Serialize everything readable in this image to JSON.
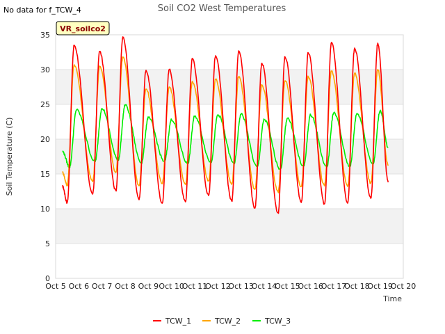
{
  "chart_data": {
    "type": "line",
    "title": "Soil CO2 West Temperatures",
    "note": "No data for f_TCW_4",
    "badge": "VR_soilco2",
    "xlabel": "Time",
    "ylabel": "Soil Temperature (C)",
    "xlim": [
      5,
      20
    ],
    "ylim": [
      0,
      35
    ],
    "x_ticks": [
      {
        "v": 5,
        "label": "Oct 5"
      },
      {
        "v": 6,
        "label": "Oct 6"
      },
      {
        "v": 7,
        "label": "Oct 7"
      },
      {
        "v": 8,
        "label": "Oct 8"
      },
      {
        "v": 9,
        "label": "Oct 9"
      },
      {
        "v": 10,
        "label": "Oct 10"
      },
      {
        "v": 11,
        "label": "Oct 11"
      },
      {
        "v": 12,
        "label": "Oct 12"
      },
      {
        "v": 13,
        "label": "Oct 13"
      },
      {
        "v": 14,
        "label": "Oct 14"
      },
      {
        "v": 15,
        "label": "Oct 15"
      },
      {
        "v": 16,
        "label": "Oct 16"
      },
      {
        "v": 17,
        "label": "Oct 17"
      },
      {
        "v": 18,
        "label": "Oct 18"
      },
      {
        "v": 19,
        "label": "Oct 19"
      },
      {
        "v": 20,
        "label": "Oct 20"
      }
    ],
    "y_ticks": [
      0,
      5,
      10,
      15,
      20,
      25,
      30,
      35
    ],
    "grid": true,
    "legend": "bottom",
    "series": [
      {
        "name": "TCW_1",
        "color": "#ff0000",
        "start_value": 13.2,
        "end_value": 13.8,
        "peaks": [
          [
            5.8,
            33.5
          ],
          [
            6.9,
            32.6
          ],
          [
            7.9,
            34.7
          ],
          [
            8.9,
            29.9
          ],
          [
            9.9,
            30.0
          ],
          [
            10.9,
            31.6
          ],
          [
            11.9,
            32.0
          ],
          [
            12.9,
            32.7
          ],
          [
            13.9,
            30.9
          ],
          [
            14.9,
            31.8
          ],
          [
            15.9,
            32.4
          ],
          [
            16.9,
            33.9
          ],
          [
            17.9,
            33.1
          ],
          [
            18.9,
            33.8
          ]
        ],
        "troughs": [
          [
            5.5,
            10.9
          ],
          [
            6.6,
            12.1
          ],
          [
            7.6,
            12.6
          ],
          [
            8.6,
            11.3
          ],
          [
            9.6,
            10.8
          ],
          [
            10.6,
            11.0
          ],
          [
            11.6,
            11.9
          ],
          [
            12.6,
            11.1
          ],
          [
            13.6,
            10.1
          ],
          [
            14.6,
            9.4
          ],
          [
            15.6,
            10.9
          ],
          [
            16.6,
            10.7
          ],
          [
            17.6,
            10.8
          ],
          [
            18.6,
            11.5
          ]
        ]
      },
      {
        "name": "TCW_2",
        "color": "#ffa500",
        "start_value": 15.2,
        "end_value": 16.2,
        "peaks": [
          [
            5.8,
            30.7
          ],
          [
            6.9,
            30.5
          ],
          [
            7.9,
            31.8
          ],
          [
            8.9,
            27.2
          ],
          [
            9.9,
            27.5
          ],
          [
            10.9,
            28.3
          ],
          [
            11.9,
            28.6
          ],
          [
            12.9,
            29.0
          ],
          [
            13.9,
            27.8
          ],
          [
            14.9,
            28.4
          ],
          [
            15.9,
            29.0
          ],
          [
            16.9,
            29.8
          ],
          [
            17.9,
            29.5
          ],
          [
            18.9,
            30.0
          ]
        ],
        "troughs": [
          [
            5.5,
            13.4
          ],
          [
            6.6,
            13.9
          ],
          [
            7.6,
            15.2
          ],
          [
            8.6,
            13.3
          ],
          [
            9.6,
            13.6
          ],
          [
            10.6,
            13.5
          ],
          [
            11.6,
            14.0
          ],
          [
            12.6,
            13.5
          ],
          [
            13.6,
            12.8
          ],
          [
            14.6,
            12.4
          ],
          [
            15.6,
            13.2
          ],
          [
            16.6,
            13.3
          ],
          [
            17.6,
            13.2
          ],
          [
            18.6,
            13.7
          ]
        ]
      },
      {
        "name": "TCW_3",
        "color": "#00ee00",
        "start_value": 18.2,
        "end_value": 18.8,
        "peaks": [
          [
            5.9,
            24.2
          ],
          [
            7.0,
            24.4
          ],
          [
            8.0,
            24.9
          ],
          [
            9.0,
            23.1
          ],
          [
            10.0,
            22.8
          ],
          [
            11.0,
            23.3
          ],
          [
            12.0,
            23.5
          ],
          [
            13.0,
            23.6
          ],
          [
            14.0,
            22.8
          ],
          [
            15.0,
            23.0
          ],
          [
            16.0,
            23.5
          ],
          [
            17.0,
            23.8
          ],
          [
            18.0,
            23.7
          ],
          [
            19.0,
            24.1
          ]
        ],
        "troughs": [
          [
            5.6,
            16.0
          ],
          [
            6.7,
            16.8
          ],
          [
            7.7,
            17.0
          ],
          [
            8.7,
            16.6
          ],
          [
            9.7,
            16.8
          ],
          [
            10.7,
            16.5
          ],
          [
            11.7,
            16.7
          ],
          [
            12.7,
            16.5
          ],
          [
            13.7,
            16.0
          ],
          [
            14.7,
            15.7
          ],
          [
            15.7,
            16.1
          ],
          [
            16.7,
            16.0
          ],
          [
            17.7,
            16.1
          ],
          [
            18.7,
            16.5
          ]
        ]
      }
    ]
  }
}
